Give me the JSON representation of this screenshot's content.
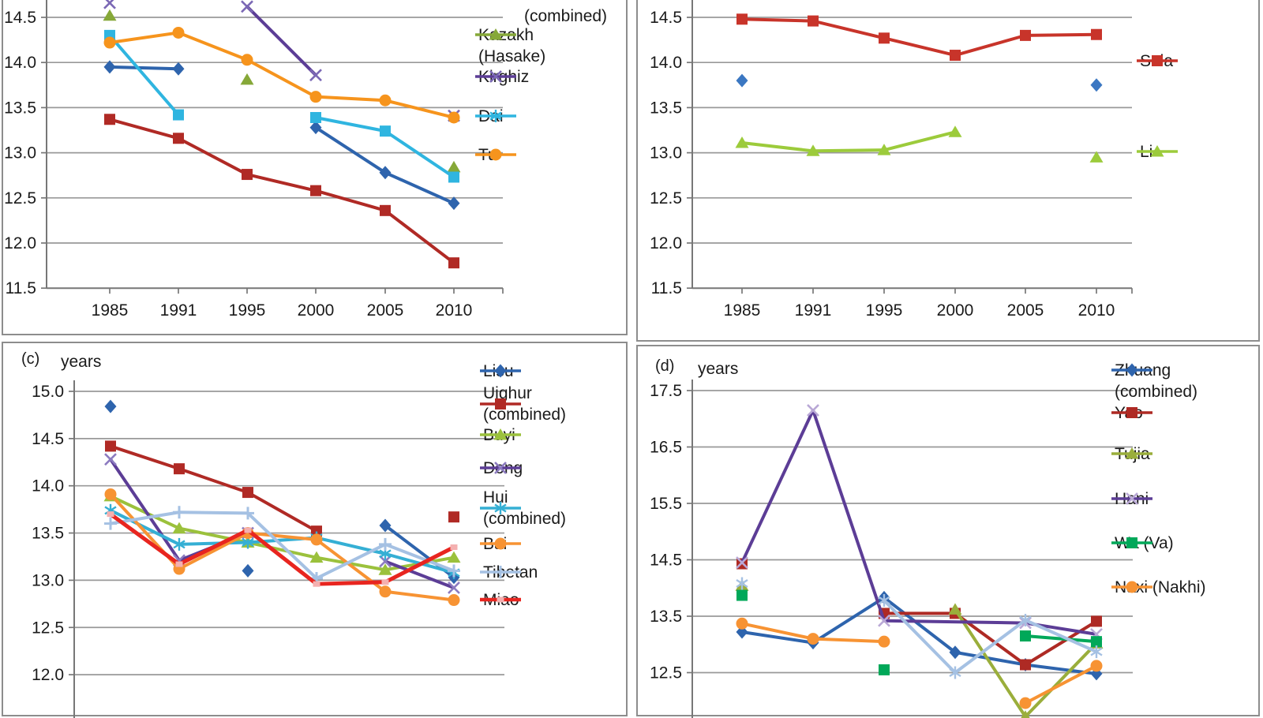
{
  "figure": {
    "background": "#ffffff",
    "border_color": "#8d8d8d",
    "gridline_color": "#999999"
  },
  "chart_data": {
    "type": "line",
    "x_categories": [
      "1985",
      "1991",
      "1995",
      "2000",
      "2005",
      "2010"
    ],
    "panels": [
      {
        "id": "a",
        "panel_label": "",
        "years_label": "",
        "x_axis_visible": true,
        "y_ticks": [
          {
            "label": "14.5",
            "value": 14.5
          },
          {
            "label": "14.0",
            "value": 14.0
          },
          {
            "label": "13.5",
            "value": 13.5
          },
          {
            "label": "13.0",
            "value": 13.0
          },
          {
            "label": "12.5",
            "value": 12.5
          },
          {
            "label": "12.0",
            "value": 12.0
          },
          {
            "label": "11.5",
            "value": 11.5
          }
        ],
        "ylim": [
          11.5,
          14.75
        ],
        "legend": [
          {
            "lines": [
              "(combined)"
            ],
            "marker": "none",
            "color": ""
          },
          {
            "lines": [
              "Kazakh",
              "(Hasake)"
            ],
            "marker": "triangle",
            "color": "#86A838"
          },
          {
            "lines": [
              "Kirghiz"
            ],
            "marker": "x",
            "color": "#5C3D96",
            "marker_color": "#7B68B5"
          },
          {
            "lines": [
              "Dai"
            ],
            "marker": "star6",
            "color": "#2FB5E0"
          },
          {
            "lines": [
              "Tu"
            ],
            "marker": "circle",
            "color": "#F6941D"
          }
        ],
        "series": [
          {
            "name": "(combined)",
            "marker": "diamond",
            "color": "#2E64AD",
            "values": [
              13.95,
              13.93,
              null,
              13.28,
              12.78,
              12.44
            ]
          },
          {
            "name": "",
            "marker": "square",
            "color": "#B02A25",
            "values": [
              13.37,
              13.16,
              12.76,
              12.58,
              12.36,
              11.78
            ]
          },
          {
            "name": "Kazakh (Hasake)",
            "marker": "triangle",
            "color": "#86A838",
            "values": [
              14.52,
              null,
              13.81,
              null,
              null,
              12.84
            ]
          },
          {
            "name": "Kirghiz",
            "marker": "x",
            "color": "#5C3D96",
            "marker_color": "#7B68B5",
            "values": [
              14.66,
              null,
              14.62,
              13.86,
              null,
              13.41
            ]
          },
          {
            "name": "Dai",
            "marker": "square",
            "color": "#2FB5E0",
            "values": [
              14.3,
              13.42,
              null,
              13.39,
              13.24,
              12.73
            ]
          },
          {
            "name": "Tu",
            "marker": "circle",
            "color": "#F6941D",
            "values": [
              14.22,
              14.33,
              14.03,
              13.62,
              13.58,
              13.39
            ]
          }
        ]
      },
      {
        "id": "b",
        "panel_label": "",
        "years_label": "",
        "x_axis_visible": true,
        "y_ticks": [
          {
            "label": "14.5",
            "value": 14.5
          },
          {
            "label": "14.0",
            "value": 14.0
          },
          {
            "label": "13.5",
            "value": 13.5
          },
          {
            "label": "13.0",
            "value": 13.0
          },
          {
            "label": "12.5",
            "value": 12.5
          },
          {
            "label": "12.0",
            "value": 12.0
          },
          {
            "label": "11.5",
            "value": 11.5
          }
        ],
        "ylim": [
          11.5,
          14.75
        ],
        "legend": [
          {
            "lines": [
              "Sala"
            ],
            "marker": "square",
            "color": "#C8342A"
          },
          {
            "lines": [
              "Li"
            ],
            "marker": "triangle",
            "color": "#9CCB3B"
          }
        ],
        "series": [
          {
            "name": "",
            "marker": "diamond",
            "color": "#3B77C2",
            "values": [
              13.8,
              null,
              null,
              null,
              null,
              13.75
            ]
          },
          {
            "name": "Sala",
            "marker": "square",
            "color": "#C8342A",
            "values": [
              14.48,
              14.46,
              14.27,
              14.08,
              14.3,
              14.31
            ]
          },
          {
            "name": "Li",
            "marker": "triangle",
            "color": "#9CCB3B",
            "values": [
              13.11,
              13.02,
              13.03,
              13.23,
              null,
              12.95
            ]
          }
        ]
      },
      {
        "id": "c",
        "panel_label": "(c)",
        "years_label": "years",
        "x_axis_visible": false,
        "y_ticks": [
          {
            "label": "15.0",
            "value": 15.0
          },
          {
            "label": "14.5",
            "value": 14.5
          },
          {
            "label": "14.0",
            "value": 14.0
          },
          {
            "label": "13.5",
            "value": 13.5
          },
          {
            "label": "13.0",
            "value": 13.0
          },
          {
            "label": "12.5",
            "value": 12.5
          },
          {
            "label": "12.0",
            "value": 12.0
          }
        ],
        "ylim": [
          11.8,
          15.0
        ],
        "legend": [
          {
            "lines": [
              "Lisu"
            ],
            "marker": "diamond",
            "color": "#2E64AD"
          },
          {
            "lines": [
              "Uighur",
              "(combined)"
            ],
            "marker": "square",
            "color": "#B02A25"
          },
          {
            "lines": [
              "Buyi"
            ],
            "marker": "triangle",
            "color": "#9BC13C"
          },
          {
            "lines": [
              "Dong"
            ],
            "marker": "x",
            "color": "#5C3D96",
            "marker_color": "#8C7BC0"
          },
          {
            "lines": [
              "Hui",
              "(combined)"
            ],
            "marker": "star6",
            "color": "#35AFD4"
          },
          {
            "lines": [
              "Bai"
            ],
            "marker": "circle",
            "color": "#F79333"
          },
          {
            "lines": [
              "Tibetan"
            ],
            "marker": "plus",
            "color": "#A5C1E3"
          },
          {
            "lines": [
              "Miao"
            ],
            "marker": "dash",
            "color": "#E8251F",
            "marker_color": "#F4B0B0"
          }
        ],
        "series": [
          {
            "name": "Lisu",
            "marker": "diamond",
            "color": "#2E64AD",
            "values": [
              14.84,
              null,
              13.1,
              null,
              13.58,
              13.03
            ]
          },
          {
            "name": "Uighur (combined)",
            "marker": "square",
            "color": "#B02A25",
            "values": [
              14.42,
              14.18,
              13.93,
              13.52,
              null,
              13.67
            ]
          },
          {
            "name": "Buyi",
            "marker": "triangle",
            "color": "#9BC13C",
            "values": [
              13.89,
              13.55,
              13.4,
              13.24,
              13.11,
              13.24
            ]
          },
          {
            "name": "Dong",
            "marker": "x",
            "color": "#5C3D96",
            "marker_color": "#8C7BC0",
            "values": [
              14.28,
              13.21,
              13.5,
              null,
              13.2,
              12.92
            ]
          },
          {
            "name": "Hui (combined)",
            "marker": "star6",
            "color": "#35AFD4",
            "values": [
              13.74,
              13.38,
              13.4,
              13.45,
              13.28,
              13.08
            ]
          },
          {
            "name": "Bai",
            "marker": "circle",
            "color": "#F79333",
            "values": [
              13.91,
              13.12,
              13.5,
              13.43,
              12.88,
              12.79
            ]
          },
          {
            "name": "Tibetan",
            "marker": "plus",
            "color": "#A5C1E3",
            "values": [
              13.6,
              13.72,
              13.71,
              13.02,
              13.38,
              13.1
            ]
          },
          {
            "name": "Miao",
            "marker": "dash",
            "color": "#E8251F",
            "marker_color": "#F4B0B0",
            "width": 5,
            "values": [
              13.7,
              13.17,
              13.53,
              12.96,
              12.98,
              13.35
            ]
          }
        ]
      },
      {
        "id": "d",
        "panel_label": "(d)",
        "years_label": "years",
        "x_axis_visible": false,
        "y_ticks": [
          {
            "label": "17.5",
            "value": 17.5
          },
          {
            "label": "16.5",
            "value": 16.5
          },
          {
            "label": "15.5",
            "value": 15.5
          },
          {
            "label": "14.5",
            "value": 14.5
          },
          {
            "label": "13.5",
            "value": 13.5
          },
          {
            "label": "12.5",
            "value": 12.5
          }
        ],
        "ylim": [
          11.8,
          17.5
        ],
        "legend": [
          {
            "lines": [
              "Zhuang",
              "(combined)"
            ],
            "marker": "diamond",
            "color": "#2E64AD"
          },
          {
            "lines": [
              "Yao"
            ],
            "marker": "square",
            "color": "#AE2A24"
          },
          {
            "lines": [
              "Tujia"
            ],
            "marker": "triangle",
            "color": "#9AAE3B"
          },
          {
            "lines": [
              "Hani"
            ],
            "marker": "x",
            "color": "#5C3D96",
            "marker_color": "#B9A8D6"
          },
          {
            "lines": [
              "Wa (Va)"
            ],
            "marker": "square",
            "color": "#00A859"
          },
          {
            "lines": [
              "Naxi (Nakhi)"
            ],
            "marker": "circle",
            "color": "#F79333"
          }
        ],
        "series": [
          {
            "name": "Zhuang (combined)",
            "marker": "diamond",
            "color": "#2E64AD",
            "values": [
              13.22,
              13.03,
              13.83,
              12.86,
              12.64,
              12.48
            ]
          },
          {
            "name": "Yao",
            "marker": "square",
            "color": "#AE2A24",
            "values": [
              14.43,
              null,
              13.55,
              13.55,
              12.64,
              13.41
            ]
          },
          {
            "name": "Tujia",
            "marker": "triangle",
            "color": "#9AAE3B",
            "values": [
              14.04,
              null,
              null,
              13.62,
              11.72,
              13.02
            ]
          },
          {
            "name": "Hani",
            "marker": "x",
            "color": "#5C3D96",
            "marker_color": "#B9A8D6",
            "span_gaps": true,
            "values": [
              14.45,
              17.15,
              13.42,
              null,
              13.38,
              13.18
            ]
          },
          {
            "name": "Wa (Va)",
            "marker": "square",
            "color": "#00A859",
            "values": [
              13.87,
              null,
              12.55,
              null,
              13.15,
              13.05
            ]
          },
          {
            "name": "Naxi (Nakhi)",
            "marker": "circle",
            "color": "#F79333",
            "values": [
              13.37,
              13.1,
              13.05,
              null,
              11.96,
              12.62
            ]
          },
          {
            "name": "",
            "marker": "star6",
            "color": "#A5C1E3",
            "values": [
              14.08,
              null,
              13.78,
              12.5,
              13.43,
              12.87
            ]
          }
        ]
      }
    ]
  }
}
